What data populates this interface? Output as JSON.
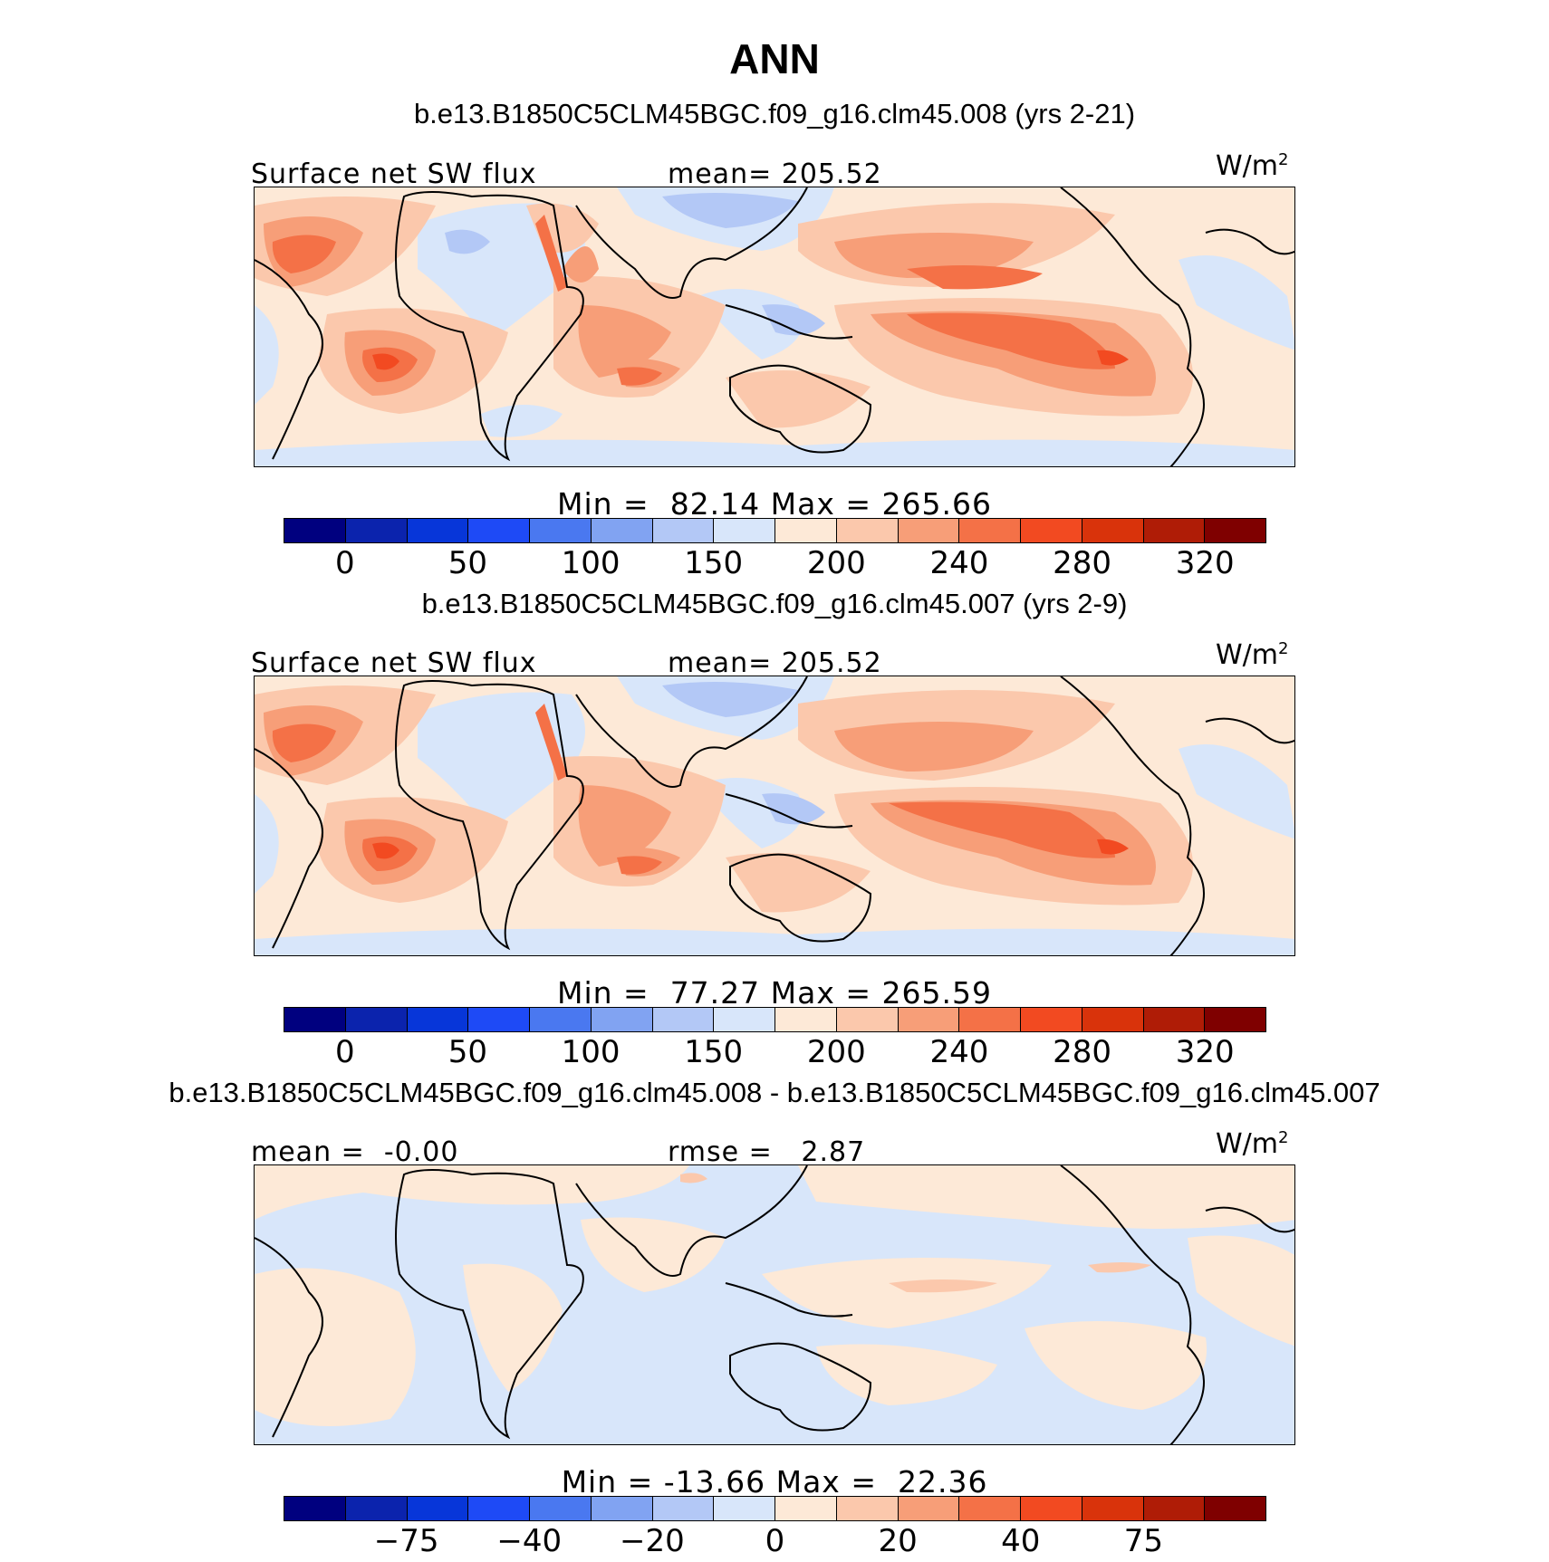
{
  "title": "ANN",
  "colorbar_colors": [
    "#00007f",
    "#0b23ad",
    "#0736d9",
    "#1e4af6",
    "#4a78f0",
    "#81a3f2",
    "#b3c8f6",
    "#d8e6fa",
    "#fde9d7",
    "#fbc8ac",
    "#f79e78",
    "#f47147",
    "#f24a21",
    "#d9330b",
    "#af1c06",
    "#7f0000"
  ],
  "panels": [
    {
      "id": "p1",
      "case_title": "b.e13.B1850C5CLM45BGC.f09_g16.clm45.008 (yrs 2-21)",
      "left_label": "Surface net SW flux",
      "center_label": "mean= 205.52",
      "units": "W/m",
      "units_sup": "2",
      "minmax": "Min =  82.14 Max = 265.66",
      "tick_labels": [
        "0",
        "50",
        "100",
        "150",
        "200",
        "240",
        "280",
        "320"
      ]
    },
    {
      "id": "p2",
      "case_title": "b.e13.B1850C5CLM45BGC.f09_g16.clm45.007 (yrs 2-9)",
      "left_label": "Surface net SW flux",
      "center_label": "mean= 205.52",
      "units": "W/m",
      "units_sup": "2",
      "minmax": "Min =  77.27 Max = 265.59",
      "tick_labels": [
        "0",
        "50",
        "100",
        "150",
        "200",
        "240",
        "280",
        "320"
      ]
    },
    {
      "id": "p3",
      "case_title": "b.e13.B1850C5CLM45BGC.f09_g16.clm45.008 - b.e13.B1850C5CLM45BGC.f09_g16.clm45.007",
      "left_label": "mean =  -0.00",
      "center_label": "rmse =   2.87",
      "units": "W/m",
      "units_sup": "2",
      "minmax": "Min = -13.66 Max =  22.36",
      "tick_labels": [
        "-75",
        "-40",
        "-20",
        "0",
        "20",
        "40",
        "75"
      ]
    }
  ]
}
